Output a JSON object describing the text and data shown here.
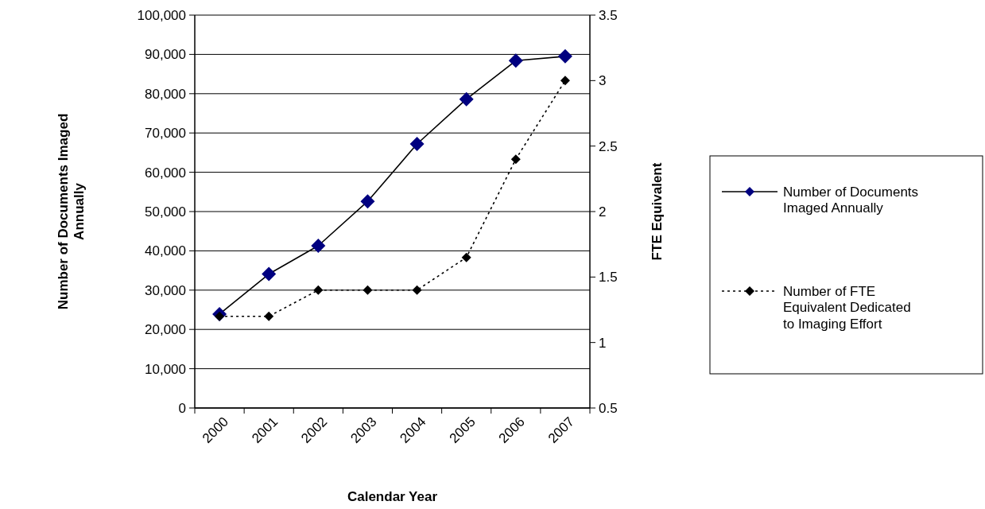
{
  "chart_data": {
    "type": "line",
    "xlabel": "Calendar Year",
    "ylabel": "Number of Documents Imaged Annually",
    "y2label": "FTE Equivalent",
    "categories": [
      "2000",
      "2001",
      "2002",
      "2003",
      "2004",
      "2005",
      "2006",
      "2007"
    ],
    "series": [
      {
        "name": "Number of Documents Imaged Annually",
        "color": "#000080",
        "values": [
          23900,
          34100,
          41300,
          52600,
          67200,
          78600,
          88400,
          89500
        ],
        "line_style": "solid"
      },
      {
        "name": "Number of FTE Equivalent Dedicated to Imaging Effort",
        "color": "#000000",
        "values": [
          1.2,
          1.2,
          1.4,
          1.4,
          1.4,
          1.65,
          2.4,
          3
        ],
        "axis": "y2",
        "line_style": "dotted"
      }
    ],
    "ylim": [
      0,
      100000
    ],
    "yticks": [
      {
        "value": 0,
        "label": "0"
      },
      {
        "value": 10000,
        "label": "10,000"
      },
      {
        "value": 20000,
        "label": "20,000"
      },
      {
        "value": 30000,
        "label": "30,000"
      },
      {
        "value": 40000,
        "label": "40,000"
      },
      {
        "value": 50000,
        "label": "50,000"
      },
      {
        "value": 60000,
        "label": "60,000"
      },
      {
        "value": 70000,
        "label": "70,000"
      },
      {
        "value": 80000,
        "label": "80,000"
      },
      {
        "value": 90000,
        "label": "90,000"
      },
      {
        "value": 100000,
        "label": "100,000"
      }
    ],
    "y2lim": [
      0.5,
      3.5
    ],
    "y2ticks": [
      0.5,
      1,
      1.5,
      2,
      2.5,
      3,
      3.5
    ],
    "grid": "y",
    "legend": "right",
    "marker": "diamond"
  }
}
